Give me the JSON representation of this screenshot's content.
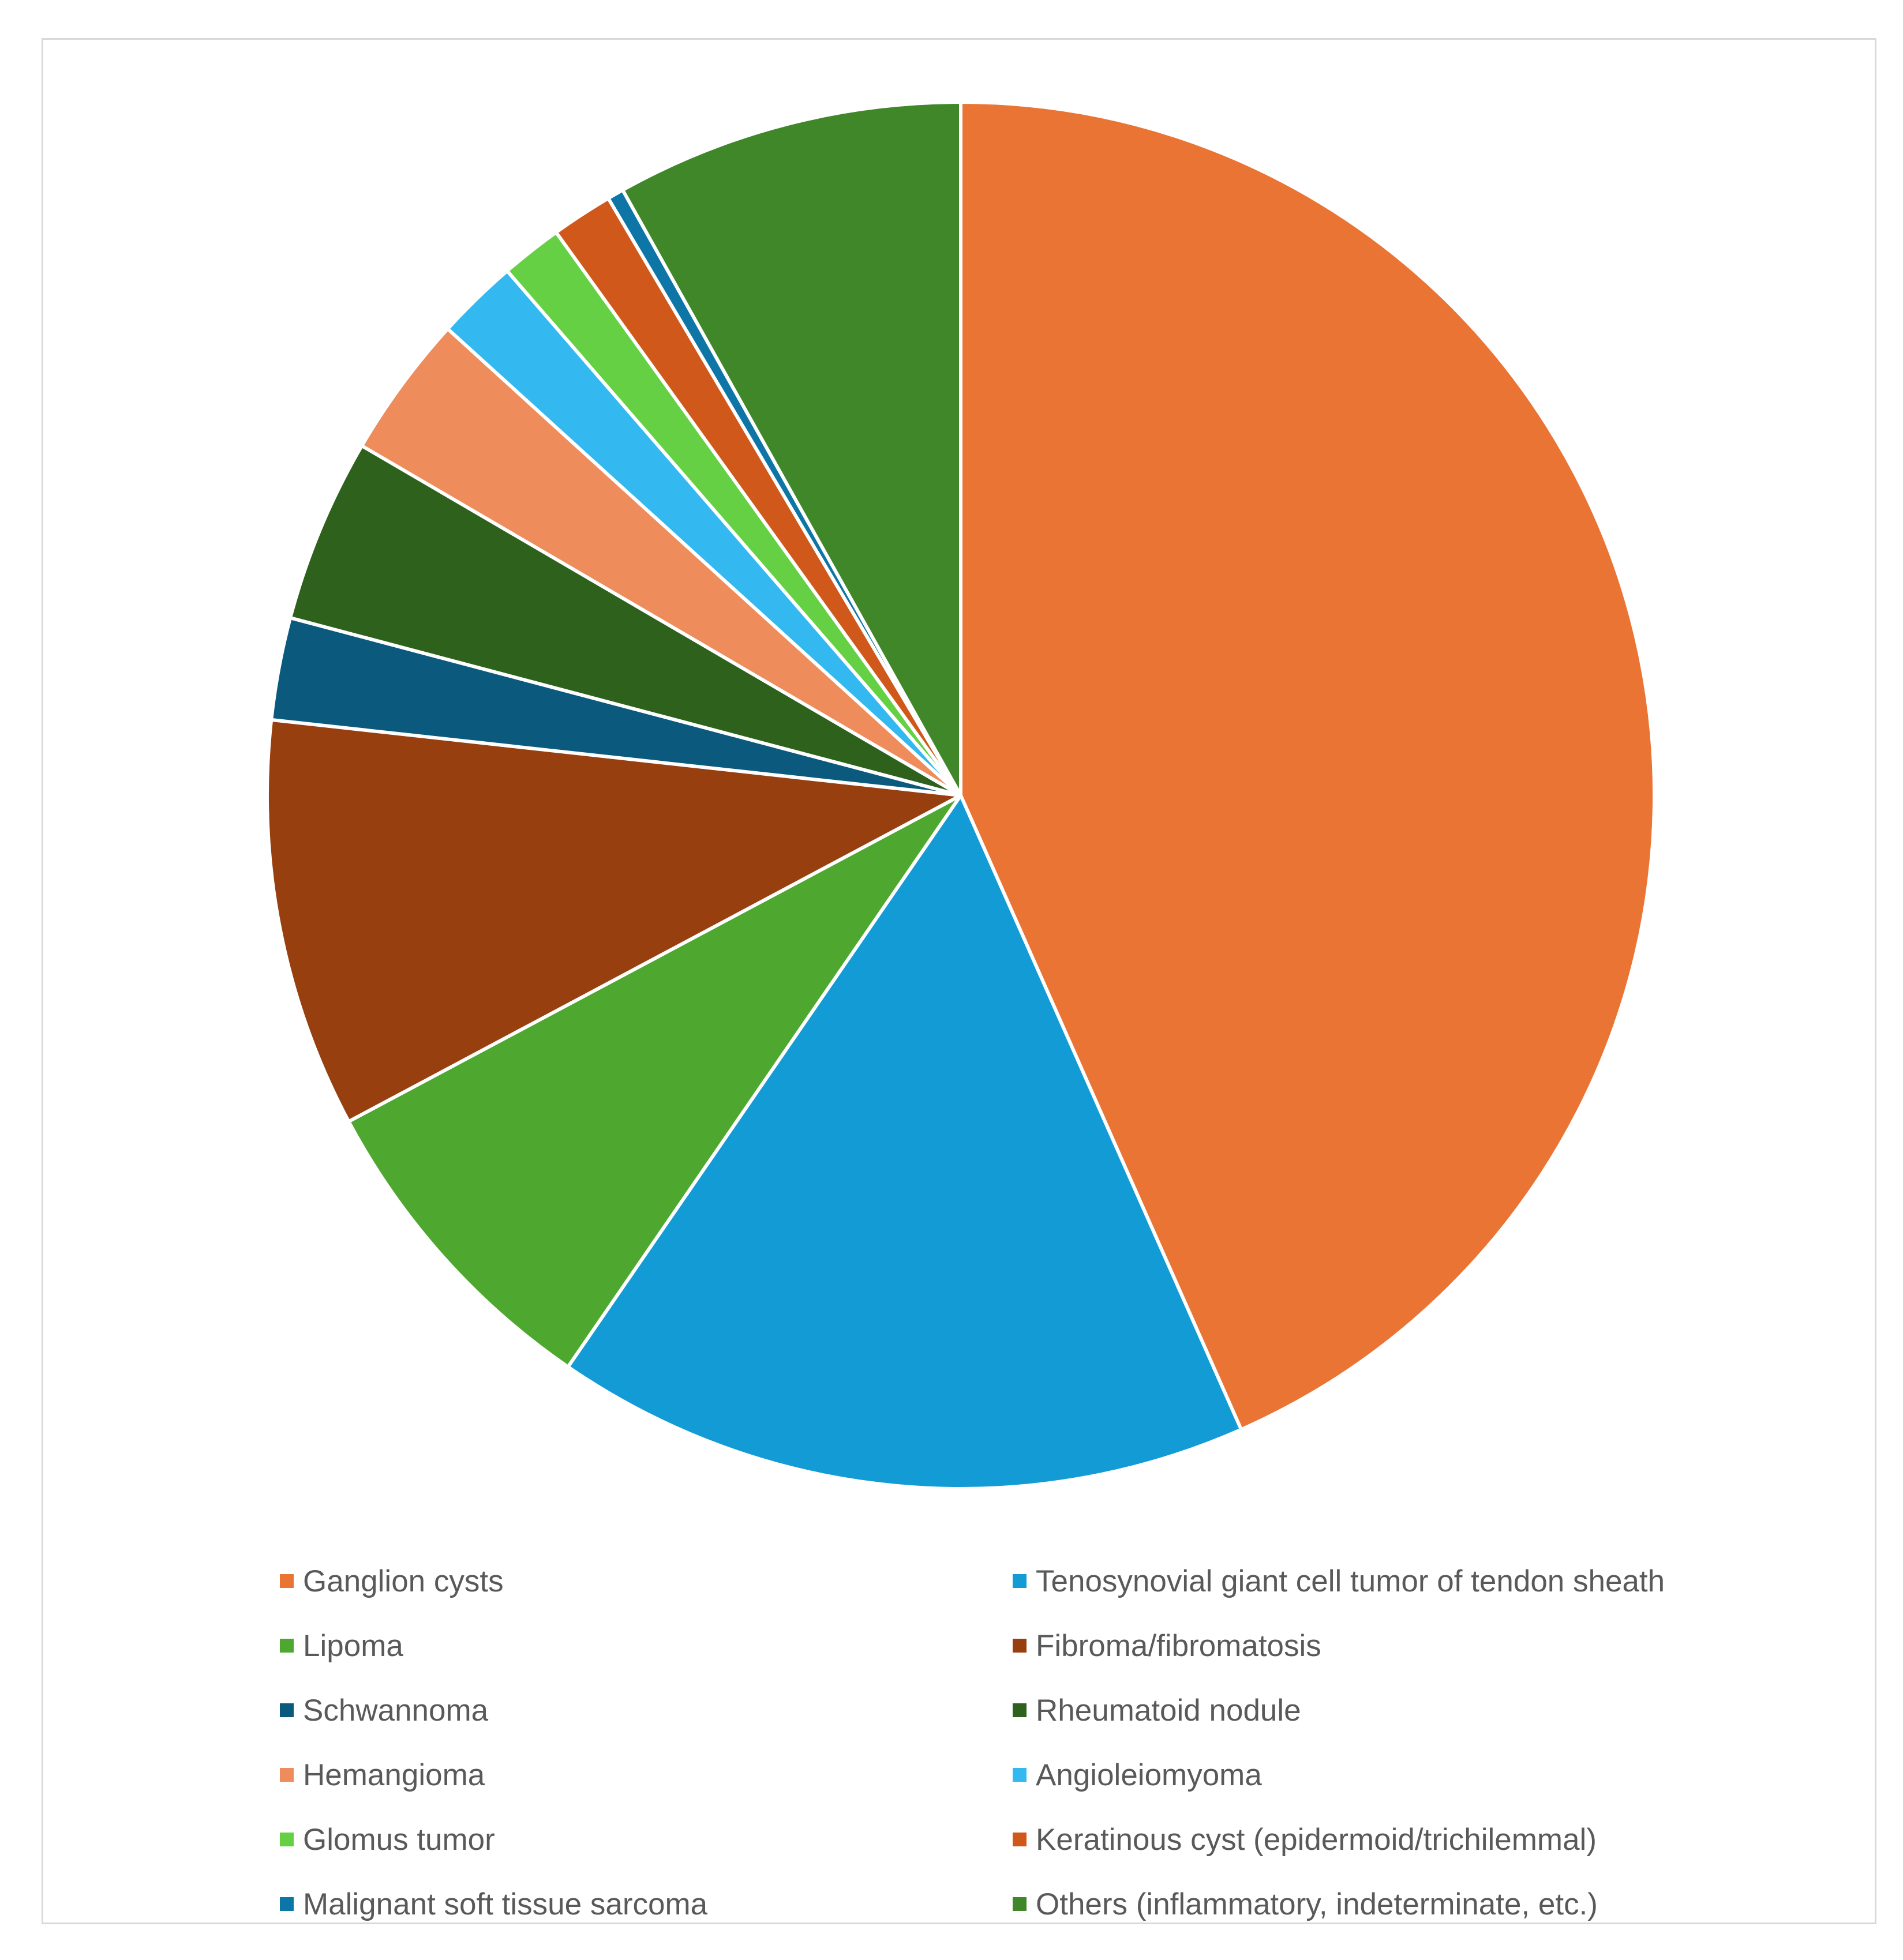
{
  "chart_data": {
    "type": "pie",
    "title": "",
    "legend_position": "bottom",
    "start_angle_deg": 0,
    "direction": "clockwise",
    "slices": [
      {
        "name": "Ganglion cysts",
        "value": 45.5,
        "color": "#ea7434"
      },
      {
        "name": "Tenosynovial giant cell tumor of tendon sheath",
        "value": 17.0,
        "color": "#139bd6"
      },
      {
        "name": "Lipoma",
        "value": 8.0,
        "color": "#4ea72e"
      },
      {
        "name": "Fibroma/fibromatosis",
        "value": 10.0,
        "color": "#983f10"
      },
      {
        "name": "Schwannoma",
        "value": 2.5,
        "color": "#0b5a7e"
      },
      {
        "name": "Rheumatoid nodule",
        "value": 4.5,
        "color": "#2e621c"
      },
      {
        "name": "Hemangioma",
        "value": 3.5,
        "color": "#ee8c5c"
      },
      {
        "name": "Angioleiomyoma",
        "value": 2.0,
        "color": "#33b8f0"
      },
      {
        "name": "Glomus tumor",
        "value": 1.5,
        "color": "#66d044"
      },
      {
        "name": "Keratinous cyst (epidermoid/trichilemmal)",
        "value": 1.5,
        "color": "#d0581a"
      },
      {
        "name": "Malignant soft tissue sarcoma",
        "value": 0.4,
        "color": "#0d76a6"
      },
      {
        "name": "Others (inflammatory, indeterminate, etc.)",
        "value": 8.5,
        "color": "#3f8728"
      }
    ]
  }
}
